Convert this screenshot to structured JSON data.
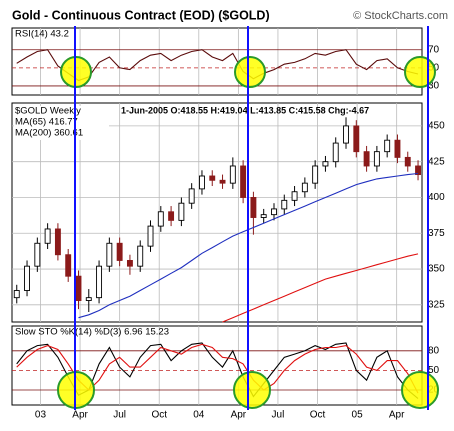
{
  "chart_data": [
    {
      "type": "candlestick",
      "title": "Gold - Continuous Contract (EOD) ($GOLD)",
      "source": "© StockCharts.com",
      "label": "$GOLD Weekly",
      "info": "1-Jun-2005 O:418.55 H:419.04 L:413.85 C:415.58 Chg:-4.67",
      "x": [
        2002.85,
        2002.915,
        2002.98,
        2003.045,
        2003.11,
        2003.175,
        2003.24,
        2003.305,
        2003.37,
        2003.435,
        2003.5,
        2003.565,
        2003.63,
        2003.695,
        2003.76,
        2003.825,
        2003.89,
        2003.955,
        2004.02,
        2004.085,
        2004.15,
        2004.215,
        2004.28,
        2004.345,
        2004.41,
        2004.475,
        2004.54,
        2004.605,
        2004.67,
        2004.735,
        2004.8,
        2004.865,
        2004.93,
        2004.995,
        2005.06,
        2005.125,
        2005.19,
        2005.255,
        2005.32,
        2005.385
      ],
      "ohlc": [
        [
          330,
          339,
          326,
          335
        ],
        [
          335,
          356,
          331,
          352
        ],
        [
          352,
          372,
          348,
          368
        ],
        [
          368,
          382,
          364,
          378
        ],
        [
          378,
          382,
          356,
          360
        ],
        [
          360,
          364,
          341,
          345
        ],
        [
          345,
          349,
          322,
          328
        ],
        [
          328,
          336,
          320,
          330
        ],
        [
          330,
          356,
          326,
          352
        ],
        [
          352,
          372,
          348,
          368
        ],
        [
          368,
          372,
          352,
          356
        ],
        [
          356,
          360,
          346,
          352
        ],
        [
          352,
          370,
          348,
          366
        ],
        [
          366,
          384,
          362,
          380
        ],
        [
          380,
          394,
          376,
          390
        ],
        [
          390,
          394,
          380,
          384
        ],
        [
          384,
          400,
          380,
          396
        ],
        [
          396,
          410,
          392,
          406
        ],
        [
          406,
          419,
          402,
          415
        ],
        [
          415,
          419,
          408,
          412
        ],
        [
          412,
          416,
          406,
          410
        ],
        [
          410,
          428,
          406,
          422
        ],
        [
          422,
          426,
          396,
          400
        ],
        [
          400,
          404,
          374,
          386
        ],
        [
          386,
          392,
          382,
          388
        ],
        [
          388,
          396,
          384,
          392
        ],
        [
          392,
          402,
          388,
          398
        ],
        [
          398,
          408,
          394,
          404
        ],
        [
          404,
          414,
          400,
          410
        ],
        [
          410,
          426,
          406,
          422
        ],
        [
          422,
          429,
          418,
          425
        ],
        [
          425,
          442,
          421,
          438
        ],
        [
          438,
          456,
          434,
          450
        ],
        [
          450,
          454,
          428,
          432
        ],
        [
          432,
          436,
          418,
          422
        ],
        [
          422,
          436,
          418,
          432
        ],
        [
          432,
          444,
          428,
          440
        ],
        [
          440,
          444,
          424,
          428
        ],
        [
          428,
          432,
          418,
          422
        ],
        [
          422,
          426,
          412,
          416
        ]
      ],
      "up_color": "#000000",
      "down_color": "#8b1a1a",
      "series": [
        {
          "name": "MA(65) 416.77",
          "color": "#1f2fbf",
          "values": [
            null,
            null,
            null,
            null,
            null,
            null,
            316,
            318,
            321,
            325,
            328,
            331,
            335,
            339,
            343,
            347,
            351,
            356,
            361,
            365,
            369,
            373,
            376,
            379,
            382,
            385,
            388,
            391,
            394,
            397,
            400,
            403,
            406,
            409,
            411,
            413,
            414,
            415,
            416,
            416.77
          ]
        },
        {
          "name": "MA(200) 360.61",
          "color": "#e01010",
          "values": [
            null,
            null,
            null,
            null,
            null,
            null,
            null,
            null,
            null,
            null,
            null,
            null,
            null,
            null,
            null,
            null,
            null,
            null,
            null,
            null,
            313,
            316,
            319,
            322,
            325,
            328,
            331,
            334,
            337,
            340,
            343,
            345,
            347,
            349,
            351,
            353,
            355,
            357,
            359,
            360.61
          ]
        }
      ],
      "xlim": [
        2002.82,
        2005.41
      ],
      "xticks": [
        {
          "value": 2003,
          "label": "03"
        },
        {
          "value": 2003.25,
          "label": "Apr"
        },
        {
          "value": 2003.5,
          "label": "Jul"
        },
        {
          "value": 2003.75,
          "label": "Oct"
        },
        {
          "value": 2004,
          "label": "04"
        },
        {
          "value": 2004.25,
          "label": "Apr"
        },
        {
          "value": 2004.5,
          "label": "Jul"
        },
        {
          "value": 2004.75,
          "label": "Oct"
        },
        {
          "value": 2005,
          "label": "05"
        },
        {
          "value": 2005.25,
          "label": "Apr"
        }
      ],
      "ylim": [
        313,
        466
      ],
      "yticks": [
        325,
        350,
        375,
        400,
        425,
        450
      ],
      "grid": true
    },
    {
      "type": "line",
      "series": [
        {
          "name": "RSI(14) 43.2",
          "color": "#5a0a0a",
          "values": [
            55,
            62,
            68,
            70,
            52,
            44,
            36,
            40,
            56,
            62,
            50,
            48,
            58,
            64,
            66,
            58,
            64,
            68,
            70,
            62,
            58,
            66,
            46,
            38,
            44,
            48,
            54,
            56,
            60,
            66,
            64,
            68,
            70,
            54,
            48,
            58,
            60,
            50,
            46,
            43.2
          ]
        }
      ],
      "ylim": [
        20,
        94
      ],
      "yticks": [
        70,
        50,
        30
      ],
      "grid": true
    },
    {
      "type": "line",
      "label": "Slow STO %K(14) %D(3) 6.96 15.23",
      "series": [
        {
          "name": "%K(14)",
          "color": "#000000",
          "values": [
            60,
            80,
            88,
            90,
            70,
            40,
            12,
            20,
            60,
            85,
            55,
            40,
            70,
            88,
            90,
            65,
            80,
            90,
            92,
            70,
            55,
            80,
            40,
            10,
            30,
            50,
            70,
            75,
            80,
            88,
            82,
            90,
            92,
            50,
            35,
            70,
            80,
            40,
            20,
            6.96
          ]
        },
        {
          "name": "%D(3)",
          "color": "#e01010",
          "values": [
            55,
            70,
            82,
            88,
            82,
            60,
            35,
            20,
            35,
            60,
            70,
            55,
            55,
            70,
            85,
            80,
            75,
            85,
            90,
            85,
            70,
            68,
            60,
            35,
            20,
            30,
            50,
            65,
            75,
            82,
            85,
            85,
            88,
            75,
            55,
            50,
            65,
            65,
            45,
            15.23
          ]
        }
      ],
      "ylim": [
        -3,
        118
      ],
      "yticks": [
        80,
        50,
        20
      ],
      "grid": true
    }
  ]
}
